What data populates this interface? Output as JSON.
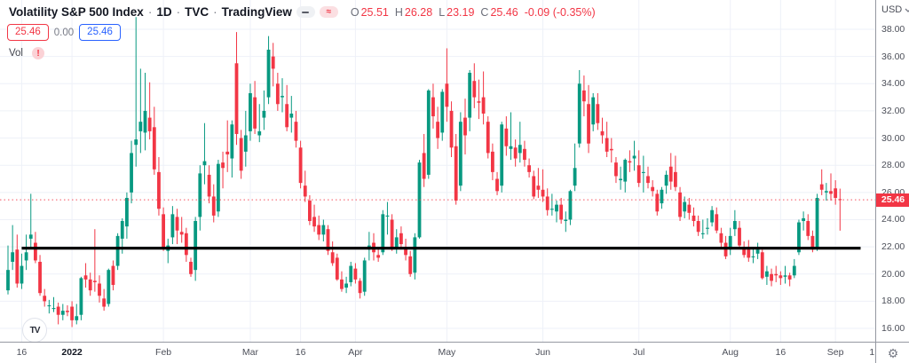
{
  "header": {
    "symbol": "Volatility S&P 500 Index",
    "sep": "·",
    "interval": "1D",
    "exchange": "TVC",
    "provider": "TradingView",
    "legend_icons": {
      "minimize_glyph": "",
      "delayed_glyph": "≈"
    },
    "ohlc": {
      "o_label": "O",
      "o_value": "25.51",
      "h_label": "H",
      "h_value": "26.28",
      "l_label": "L",
      "l_value": "23.19",
      "c_label": "C",
      "c_value": "25.46",
      "change": "-0.09 (-0.35%)"
    },
    "price_boxes": {
      "red_value": "25.46",
      "change_value": "0.00",
      "blue_value": "25.46"
    },
    "vol": {
      "label": "Vol",
      "alert_glyph": "!"
    }
  },
  "price_axis": {
    "currency": "USD",
    "tick_labels": [
      "38.00",
      "36.00",
      "34.00",
      "32.00",
      "30.00",
      "28.00",
      "26.00",
      "24.00",
      "22.00",
      "20.00",
      "18.00",
      "16.00"
    ],
    "tick_values": [
      38,
      36,
      34,
      32,
      30,
      28,
      26,
      24,
      22,
      20,
      18,
      16
    ],
    "last_price_label": "25.46"
  },
  "time_axis": {
    "ticks": [
      {
        "label": "16",
        "i": 3
      },
      {
        "label": "2022",
        "i": 14,
        "bold": true
      },
      {
        "label": "Feb",
        "i": 34
      },
      {
        "label": "Mar",
        "i": 53
      },
      {
        "label": "16",
        "i": 64
      },
      {
        "label": "Apr",
        "i": 76
      },
      {
        "label": "May",
        "i": 96
      },
      {
        "label": "Jun",
        "i": 117
      },
      {
        "label": "Jul",
        "i": 138
      },
      {
        "label": "Aug",
        "i": 158
      },
      {
        "label": "16",
        "i": 169
      },
      {
        "label": "Sep",
        "i": 181
      },
      {
        "label": "1",
        "i": 189,
        "grid": false
      }
    ]
  },
  "footer": {
    "logo_text": "TV"
  },
  "colors": {
    "up": "#089981",
    "down": "#f23645",
    "accent_blue": "#2962ff",
    "grid": "#eef1f8",
    "axis_text": "#4c4f59",
    "badge_bg": "#f23645",
    "trendline": "#000000"
  },
  "chart_data": {
    "type": "candlestick",
    "title": "Volatility S&P 500 Index",
    "interval": "1D",
    "exchange": "TVC",
    "unit": "USD",
    "ylim": [
      15.0,
      40.1
    ],
    "y_tick_step": 2,
    "grid": true,
    "last_price": 25.46,
    "trendline": {
      "price": 21.9,
      "from_index": 3,
      "to_index": 186.5
    },
    "candles_format": [
      "open",
      "high",
      "low",
      "close"
    ],
    "candles": [
      [
        18.8,
        22.1,
        18.5,
        20.3
      ],
      [
        20.9,
        23.6,
        20.3,
        21.6
      ],
      [
        21.8,
        22.9,
        19.0,
        19.3
      ],
      [
        19.3,
        21.5,
        18.9,
        20.6
      ],
      [
        21.0,
        22.9,
        20.3,
        21.6
      ],
      [
        22.6,
        25.9,
        21.9,
        22.9
      ],
      [
        22.3,
        23.1,
        20.8,
        21.0
      ],
      [
        20.9,
        21.4,
        18.4,
        18.6
      ],
      [
        18.4,
        18.9,
        17.6,
        18.0
      ],
      [
        17.7,
        18.1,
        17.1,
        17.7
      ],
      [
        17.5,
        18.3,
        17.2,
        17.5
      ],
      [
        17.6,
        17.9,
        16.3,
        17.0
      ],
      [
        17.0,
        17.8,
        16.6,
        17.3
      ],
      [
        17.3,
        17.7,
        16.9,
        17.2
      ],
      [
        17.6,
        18.0,
        16.1,
        16.6
      ],
      [
        16.6,
        17.8,
        16.3,
        16.9
      ],
      [
        17.0,
        19.8,
        16.6,
        19.7
      ],
      [
        19.9,
        20.8,
        19.0,
        19.6
      ],
      [
        19.6,
        20.1,
        18.4,
        18.8
      ],
      [
        19.5,
        23.3,
        18.7,
        19.4
      ],
      [
        19.3,
        19.9,
        17.9,
        18.4
      ],
      [
        18.2,
        18.9,
        17.3,
        17.6
      ],
      [
        17.8,
        20.4,
        17.6,
        20.3
      ],
      [
        20.6,
        21.0,
        18.8,
        19.2
      ],
      [
        20.6,
        23.0,
        20.3,
        22.8
      ],
      [
        22.6,
        24.1,
        21.5,
        23.9
      ],
      [
        23.5,
        26.0,
        22.6,
        25.6
      ],
      [
        26.0,
        29.8,
        25.2,
        28.9
      ],
      [
        29.5,
        38.9,
        27.9,
        29.9
      ],
      [
        30.5,
        35.1,
        28.9,
        31.2
      ],
      [
        30.4,
        34.8,
        29.1,
        32.0
      ],
      [
        31.5,
        34.1,
        29.9,
        30.5
      ],
      [
        30.8,
        32.3,
        27.3,
        27.7
      ],
      [
        27.5,
        28.6,
        24.3,
        24.8
      ],
      [
        24.4,
        24.9,
        21.7,
        22.0
      ],
      [
        21.7,
        22.6,
        20.8,
        22.1
      ],
      [
        22.7,
        25.0,
        22.2,
        24.4
      ],
      [
        24.2,
        24.8,
        22.2,
        23.2
      ],
      [
        23.1,
        24.2,
        22.3,
        22.9
      ],
      [
        23.0,
        23.4,
        20.9,
        21.4
      ],
      [
        20.9,
        21.2,
        19.8,
        20.0
      ],
      [
        20.3,
        24.2,
        19.5,
        23.9
      ],
      [
        24.2,
        28.0,
        23.2,
        27.4
      ],
      [
        28.0,
        31.1,
        26.6,
        28.3
      ],
      [
        27.3,
        28.0,
        25.2,
        25.7
      ],
      [
        25.7,
        26.6,
        23.8,
        24.3
      ],
      [
        24.6,
        28.4,
        24.2,
        28.1
      ],
      [
        28.2,
        29.0,
        26.3,
        27.8
      ],
      [
        29.0,
        31.3,
        27.5,
        28.8
      ],
      [
        28.5,
        31.3,
        27.1,
        31.0
      ],
      [
        35.5,
        37.8,
        29.5,
        30.3
      ],
      [
        30.0,
        30.6,
        27.0,
        27.6
      ],
      [
        29.0,
        32.0,
        27.9,
        30.2
      ],
      [
        30.5,
        34.0,
        29.8,
        33.3
      ],
      [
        33.0,
        34.2,
        30.3,
        30.7
      ],
      [
        30.2,
        32.5,
        29.7,
        30.5
      ],
      [
        31.5,
        33.5,
        30.6,
        32.0
      ],
      [
        33.0,
        37.5,
        32.5,
        36.5
      ],
      [
        36.0,
        37.0,
        33.8,
        35.1
      ],
      [
        34.0,
        34.8,
        32.0,
        32.5
      ],
      [
        33.0,
        34.4,
        31.9,
        33.1
      ],
      [
        32.5,
        33.9,
        30.5,
        30.8
      ],
      [
        31.5,
        33.1,
        30.4,
        31.8
      ],
      [
        31.2,
        32.0,
        29.3,
        29.8
      ],
      [
        29.3,
        29.8,
        26.3,
        26.7
      ],
      [
        26.5,
        27.6,
        25.3,
        25.7
      ],
      [
        25.4,
        25.8,
        23.6,
        23.9
      ],
      [
        24.2,
        25.1,
        23.1,
        23.5
      ],
      [
        23.6,
        24.3,
        22.5,
        22.9
      ],
      [
        22.9,
        24.0,
        22.4,
        23.6
      ],
      [
        23.3,
        23.6,
        21.4,
        21.7
      ],
      [
        21.6,
        22.4,
        20.6,
        20.8
      ],
      [
        21.2,
        21.5,
        19.5,
        19.6
      ],
      [
        19.6,
        20.2,
        18.7,
        18.9
      ],
      [
        19.0,
        19.8,
        18.6,
        19.3
      ],
      [
        19.4,
        20.9,
        19.1,
        20.6
      ],
      [
        20.4,
        20.8,
        19.3,
        19.6
      ],
      [
        19.5,
        19.7,
        18.2,
        18.6
      ],
      [
        18.7,
        21.2,
        18.4,
        21.0
      ],
      [
        21.8,
        23.1,
        21.0,
        22.1
      ],
      [
        22.3,
        23.0,
        21.0,
        21.6
      ],
      [
        21.4,
        22.0,
        20.9,
        21.2
      ],
      [
        21.6,
        24.7,
        21.4,
        24.4
      ],
      [
        24.3,
        25.3,
        22.9,
        24.3
      ],
      [
        24.0,
        24.4,
        21.7,
        21.8
      ],
      [
        21.9,
        23.3,
        21.5,
        22.7
      ],
      [
        23.0,
        23.5,
        21.8,
        22.2
      ],
      [
        22.0,
        22.6,
        21.0,
        21.4
      ],
      [
        21.3,
        21.7,
        19.8,
        20.0
      ],
      [
        20.1,
        23.0,
        19.6,
        22.7
      ],
      [
        22.7,
        28.4,
        22.6,
        28.2
      ],
      [
        28.9,
        30.3,
        26.4,
        27.0
      ],
      [
        27.3,
        33.6,
        27.0,
        33.5
      ],
      [
        33.0,
        34.0,
        30.7,
        31.6
      ],
      [
        31.2,
        32.3,
        29.2,
        30.0
      ],
      [
        30.4,
        33.6,
        29.8,
        33.4
      ],
      [
        34.0,
        36.6,
        31.2,
        32.3
      ],
      [
        32.0,
        32.7,
        28.6,
        29.3
      ],
      [
        29.4,
        30.3,
        25.1,
        25.4
      ],
      [
        26.5,
        31.9,
        26.1,
        31.2
      ],
      [
        31.5,
        32.9,
        28.8,
        30.2
      ],
      [
        31.5,
        35.0,
        30.5,
        34.8
      ],
      [
        34.2,
        35.5,
        32.2,
        33.0
      ],
      [
        32.7,
        34.3,
        31.4,
        32.6
      ],
      [
        33.0,
        34.9,
        31.0,
        31.8
      ],
      [
        31.2,
        31.6,
        28.5,
        28.9
      ],
      [
        29.0,
        29.6,
        26.9,
        27.5
      ],
      [
        27.0,
        27.5,
        25.8,
        26.1
      ],
      [
        26.5,
        31.2,
        26.0,
        31.0
      ],
      [
        30.7,
        31.6,
        28.7,
        29.4
      ],
      [
        29.2,
        31.9,
        28.4,
        29.4
      ],
      [
        29.3,
        29.9,
        27.9,
        28.5
      ],
      [
        28.9,
        31.2,
        28.2,
        29.5
      ],
      [
        29.2,
        29.8,
        27.9,
        28.4
      ],
      [
        28.0,
        28.5,
        27.1,
        27.5
      ],
      [
        27.2,
        27.6,
        25.5,
        25.7
      ],
      [
        26.5,
        27.8,
        25.6,
        26.2
      ],
      [
        26.2,
        27.7,
        25.3,
        25.7
      ],
      [
        25.7,
        26.3,
        24.3,
        24.7
      ],
      [
        24.8,
        25.9,
        24.3,
        24.8
      ],
      [
        24.6,
        25.4,
        23.8,
        25.1
      ],
      [
        25.1,
        25.6,
        23.7,
        24.0
      ],
      [
        23.9,
        24.6,
        23.1,
        24.0
      ],
      [
        24.0,
        26.2,
        23.6,
        26.1
      ],
      [
        26.5,
        29.6,
        26.1,
        27.8
      ],
      [
        29.6,
        35.0,
        29.3,
        34.0
      ],
      [
        33.5,
        34.6,
        31.6,
        32.7
      ],
      [
        32.5,
        33.9,
        28.9,
        29.6
      ],
      [
        31.0,
        33.3,
        30.5,
        33.0
      ],
      [
        32.5,
        33.3,
        30.6,
        31.1
      ],
      [
        30.5,
        31.5,
        29.6,
        30.2
      ],
      [
        30.0,
        31.2,
        28.6,
        29.0
      ],
      [
        29.2,
        30.0,
        28.2,
        29.1
      ],
      [
        28.2,
        28.6,
        26.7,
        27.2
      ],
      [
        26.9,
        27.9,
        26.2,
        27.0
      ],
      [
        26.8,
        28.5,
        26.0,
        28.4
      ],
      [
        28.3,
        29.1,
        27.5,
        28.2
      ],
      [
        28.5,
        29.8,
        27.6,
        28.7
      ],
      [
        28.0,
        29.1,
        26.4,
        26.7
      ],
      [
        27.5,
        28.7,
        26.0,
        27.5
      ],
      [
        27.2,
        27.9,
        26.3,
        26.7
      ],
      [
        26.4,
        26.9,
        25.7,
        26.1
      ],
      [
        25.9,
        26.2,
        24.3,
        24.6
      ],
      [
        25.2,
        26.4,
        24.8,
        26.2
      ],
      [
        26.5,
        27.6,
        25.9,
        27.3
      ],
      [
        27.9,
        28.9,
        26.2,
        26.8
      ],
      [
        27.5,
        28.7,
        26.1,
        26.4
      ],
      [
        26.0,
        26.4,
        23.9,
        24.2
      ],
      [
        24.6,
        25.7,
        24.1,
        25.3
      ],
      [
        25.1,
        25.6,
        24.0,
        24.5
      ],
      [
        24.3,
        24.9,
        23.5,
        23.9
      ],
      [
        23.9,
        24.3,
        22.8,
        23.1
      ],
      [
        23.0,
        24.0,
        22.6,
        23.0
      ],
      [
        23.4,
        24.1,
        22.9,
        23.4
      ],
      [
        23.8,
        25.0,
        23.5,
        24.7
      ],
      [
        24.4,
        24.9,
        23.0,
        23.2
      ],
      [
        23.0,
        23.4,
        22.0,
        22.3
      ],
      [
        22.3,
        22.8,
        21.1,
        21.3
      ],
      [
        21.8,
        23.4,
        21.4,
        22.8
      ],
      [
        23.3,
        24.7,
        22.8,
        23.9
      ],
      [
        23.4,
        23.9,
        21.9,
        22.1
      ],
      [
        22.0,
        22.4,
        21.2,
        21.4
      ],
      [
        21.8,
        22.5,
        20.9,
        21.2
      ],
      [
        21.3,
        21.9,
        20.8,
        21.3
      ],
      [
        21.5,
        22.3,
        21.1,
        21.8
      ],
      [
        21.6,
        21.8,
        19.6,
        19.7
      ],
      [
        19.8,
        20.6,
        19.2,
        20.2
      ],
      [
        20.0,
        20.4,
        19.1,
        19.5
      ],
      [
        20.0,
        20.6,
        19.4,
        19.9
      ],
      [
        19.9,
        20.2,
        19.2,
        19.7
      ],
      [
        19.8,
        20.6,
        19.3,
        19.9
      ],
      [
        19.9,
        20.1,
        19.1,
        19.6
      ],
      [
        19.9,
        21.1,
        19.7,
        20.6
      ],
      [
        21.6,
        24.0,
        21.4,
        23.8
      ],
      [
        23.9,
        24.6,
        23.2,
        24.1
      ],
      [
        23.9,
        24.4,
        22.5,
        22.8
      ],
      [
        22.8,
        23.2,
        21.6,
        21.8
      ],
      [
        21.9,
        25.9,
        21.7,
        25.6
      ],
      [
        26.6,
        27.7,
        25.8,
        26.2
      ],
      [
        26.0,
        26.7,
        25.4,
        26.1
      ],
      [
        26.1,
        27.4,
        25.4,
        25.9
      ],
      [
        26.3,
        26.9,
        25.1,
        25.6
      ],
      [
        25.51,
        26.28,
        23.19,
        25.46
      ]
    ]
  }
}
